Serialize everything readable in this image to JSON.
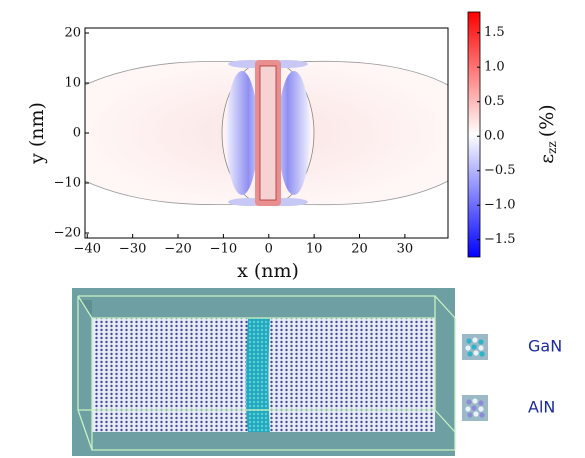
{
  "chart_data": {
    "type": "contour",
    "xlabel": "x (nm)",
    "ylabel": "y (nm)",
    "xlim": [
      -40.5,
      39.5
    ],
    "ylim": [
      -21,
      21
    ],
    "xticks": [
      {
        "value": -40,
        "label": "−40"
      },
      {
        "value": -30,
        "label": "−30"
      },
      {
        "value": -20,
        "label": "−20"
      },
      {
        "value": -10,
        "label": "−10"
      },
      0,
      10,
      20,
      30
    ],
    "yticks": [
      {
        "value": -20,
        "label": "−20"
      },
      {
        "value": -10,
        "label": "−10"
      },
      0,
      10,
      20
    ],
    "colorbar": {
      "symbol": "ε",
      "subscript": "zz",
      "unit": "(%)",
      "clim": [
        -1.75,
        1.8
      ],
      "colors": [
        "#0000ff",
        "#ffffff",
        "#ff0000"
      ],
      "ticks": [
        {
          "value": -1.5,
          "label": "−1.5"
        },
        {
          "value": -1.0,
          "label": "−1.0"
        },
        {
          "value": -0.5,
          "label": "−0.5"
        },
        {
          "value": 0.0,
          "label": "0.0"
        },
        {
          "value": 0.5,
          "label": "0.5"
        },
        {
          "value": 1.0,
          "label": "1.0"
        },
        1.5
      ]
    }
  },
  "figure_b": {
    "legend": [
      {
        "name": "GaN",
        "color": "#2fb3c6"
      },
      {
        "name": "AlN",
        "color": "#8c8cd6"
      }
    ]
  }
}
